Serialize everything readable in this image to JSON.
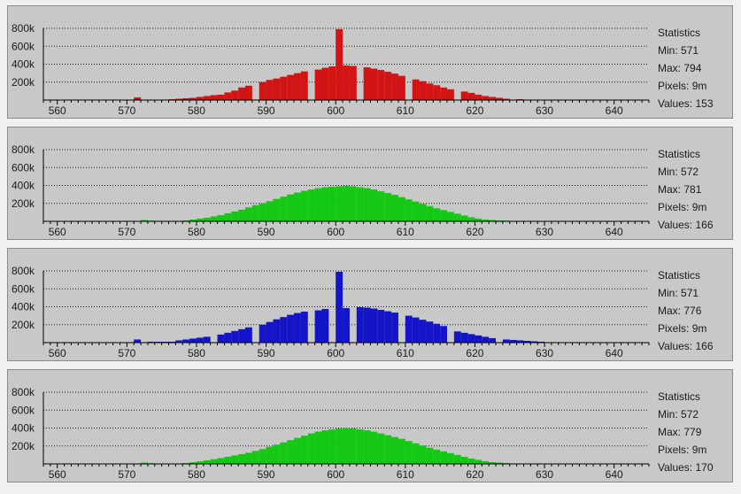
{
  "stats_labels": {
    "heading": "Statistics",
    "min": "Min:",
    "max": "Max:",
    "pixels": "Pixels:",
    "values": "Values:"
  },
  "panels": [
    {
      "min": "571",
      "max": "794",
      "pixels": "9m",
      "values": "153"
    },
    {
      "min": "572",
      "max": "781",
      "pixels": "9m",
      "values": "166"
    },
    {
      "min": "571",
      "max": "776",
      "pixels": "9m",
      "values": "166"
    },
    {
      "min": "572",
      "max": "779",
      "pixels": "9m",
      "values": "170"
    }
  ],
  "chart_data": [
    {
      "type": "bar",
      "color": "#d21414",
      "xlim": [
        558,
        645
      ],
      "ylim": [
        0,
        800000
      ],
      "x_ticks": [
        560,
        570,
        580,
        590,
        600,
        610,
        620,
        630,
        640
      ],
      "y_ticks": [
        "200k",
        "400k",
        "600k",
        "800k"
      ],
      "grid": true,
      "x": [
        571,
        575,
        576,
        577,
        578,
        579,
        580,
        581,
        582,
        583,
        584,
        585,
        586,
        587,
        588,
        589,
        590,
        591,
        592,
        593,
        594,
        595,
        596,
        597,
        598,
        599,
        600,
        601,
        602,
        603,
        604,
        605,
        606,
        607,
        608,
        609,
        610,
        611,
        612,
        613,
        614,
        615,
        616,
        617,
        618,
        619,
        620,
        621,
        622,
        623,
        624,
        625,
        626,
        627,
        628,
        629
      ],
      "values": [
        30000,
        5000,
        10000,
        15000,
        20000,
        25000,
        35000,
        45000,
        55000,
        60000,
        85000,
        105000,
        140000,
        160000,
        0,
        200000,
        225000,
        240000,
        260000,
        280000,
        300000,
        320000,
        0,
        340000,
        360000,
        375000,
        790000,
        385000,
        380000,
        0,
        365000,
        350000,
        335000,
        315000,
        295000,
        270000,
        0,
        230000,
        210000,
        185000,
        165000,
        140000,
        120000,
        0,
        95000,
        80000,
        60000,
        45000,
        35000,
        25000,
        15000,
        0,
        10000,
        5000,
        3000,
        2000
      ]
    },
    {
      "type": "bar",
      "color": "#14c814",
      "xlim": [
        558,
        645
      ],
      "ylim": [
        0,
        800000
      ],
      "x_ticks": [
        560,
        570,
        580,
        590,
        600,
        610,
        620,
        630,
        640
      ],
      "y_ticks": [
        "200k",
        "400k",
        "600k",
        "800k"
      ],
      "grid": true,
      "x": [
        572,
        573,
        577,
        578,
        579,
        580,
        581,
        582,
        583,
        584,
        585,
        586,
        587,
        588,
        589,
        590,
        591,
        592,
        593,
        594,
        595,
        596,
        597,
        598,
        599,
        600,
        601,
        602,
        603,
        604,
        605,
        606,
        607,
        608,
        609,
        610,
        611,
        612,
        613,
        614,
        615,
        616,
        617,
        618,
        619,
        620,
        621,
        622,
        623,
        624,
        625,
        626,
        627,
        628
      ],
      "values": [
        15000,
        8000,
        5000,
        10000,
        20000,
        30000,
        40000,
        55000,
        70000,
        90000,
        110000,
        130000,
        155000,
        180000,
        200000,
        225000,
        250000,
        275000,
        300000,
        320000,
        340000,
        355000,
        370000,
        380000,
        385000,
        390000,
        395000,
        390000,
        380000,
        370000,
        355000,
        335000,
        315000,
        295000,
        270000,
        245000,
        220000,
        195000,
        170000,
        145000,
        125000,
        105000,
        85000,
        65000,
        45000,
        30000,
        20000,
        15000,
        10000,
        8000,
        5000,
        3000,
        2000,
        1000
      ]
    },
    {
      "type": "bar",
      "color": "#1414c8",
      "xlim": [
        558,
        645
      ],
      "ylim": [
        0,
        800000
      ],
      "x_ticks": [
        560,
        570,
        580,
        590,
        600,
        610,
        620,
        630,
        640
      ],
      "y_ticks": [
        "200k",
        "400k",
        "600k",
        "800k"
      ],
      "grid": true,
      "x": [
        571,
        573,
        574,
        575,
        576,
        577,
        578,
        579,
        580,
        581,
        582,
        583,
        584,
        585,
        586,
        587,
        588,
        589,
        590,
        591,
        592,
        593,
        594,
        595,
        596,
        597,
        598,
        599,
        600,
        601,
        602,
        603,
        604,
        605,
        606,
        607,
        608,
        609,
        610,
        611,
        612,
        613,
        614,
        615,
        616,
        617,
        618,
        619,
        620,
        621,
        622,
        623,
        624,
        625,
        626,
        627,
        628,
        629,
        630
      ],
      "values": [
        35000,
        10000,
        10000,
        10000,
        10000,
        25000,
        35000,
        45000,
        55000,
        65000,
        0,
        90000,
        110000,
        130000,
        150000,
        170000,
        0,
        200000,
        230000,
        260000,
        285000,
        310000,
        330000,
        345000,
        0,
        360000,
        375000,
        0,
        790000,
        385000,
        0,
        395000,
        390000,
        380000,
        365000,
        350000,
        335000,
        0,
        300000,
        280000,
        255000,
        235000,
        210000,
        185000,
        0,
        125000,
        110000,
        95000,
        80000,
        65000,
        50000,
        0,
        35000,
        30000,
        25000,
        20000,
        15000,
        10000,
        5000
      ]
    },
    {
      "type": "bar",
      "color": "#14c814",
      "xlim": [
        558,
        645
      ],
      "ylim": [
        0,
        800000
      ],
      "x_ticks": [
        560,
        570,
        580,
        590,
        600,
        610,
        620,
        630,
        640
      ],
      "y_ticks": [
        "200k",
        "400k",
        "600k",
        "800k"
      ],
      "grid": true,
      "x": [
        572,
        573,
        577,
        578,
        579,
        580,
        581,
        582,
        583,
        584,
        585,
        586,
        587,
        588,
        589,
        590,
        591,
        592,
        593,
        594,
        595,
        596,
        597,
        598,
        599,
        600,
        601,
        602,
        603,
        604,
        605,
        606,
        607,
        608,
        609,
        610,
        611,
        612,
        613,
        614,
        615,
        616,
        617,
        618,
        619,
        620,
        621,
        622,
        623,
        624,
        625,
        626,
        627,
        628
      ],
      "values": [
        15000,
        8000,
        5000,
        10000,
        18000,
        28000,
        40000,
        52000,
        65000,
        80000,
        95000,
        110000,
        125000,
        145000,
        165000,
        190000,
        215000,
        240000,
        265000,
        290000,
        315000,
        340000,
        360000,
        375000,
        385000,
        395000,
        400000,
        395000,
        385000,
        375000,
        360000,
        340000,
        320000,
        300000,
        280000,
        255000,
        230000,
        205000,
        180000,
        160000,
        140000,
        120000,
        100000,
        80000,
        60000,
        45000,
        30000,
        20000,
        15000,
        10000,
        5000,
        3000,
        2000,
        1000
      ]
    }
  ]
}
